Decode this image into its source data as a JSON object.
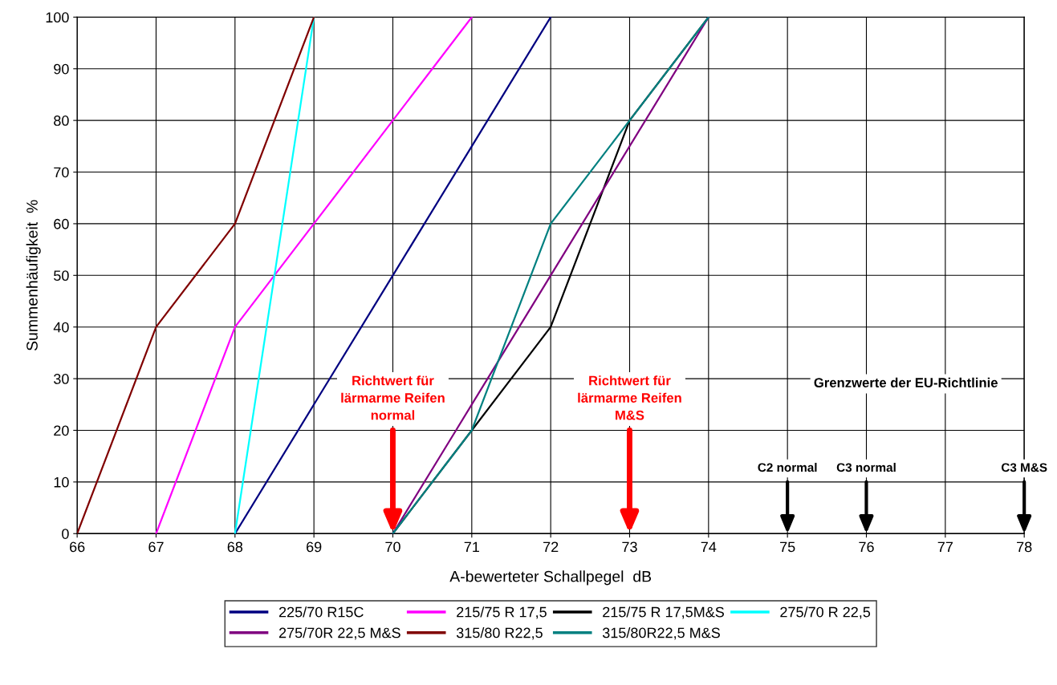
{
  "chart_data": {
    "type": "line",
    "xlabel": "A-bewerteter Schallpegel  dB",
    "ylabel": "Summenhäufigkeit  %",
    "xlim": [
      66,
      78
    ],
    "xticks": [
      66,
      67,
      68,
      69,
      70,
      71,
      72,
      73,
      74,
      75,
      76,
      77,
      78
    ],
    "ylim": [
      0,
      100
    ],
    "yticks": [
      0,
      10,
      20,
      30,
      40,
      50,
      60,
      70,
      80,
      90,
      100
    ],
    "grid": true,
    "legend": "bottom",
    "marker": "none",
    "line_style": "solid",
    "series": [
      {
        "name": "225/70 R15C",
        "color": "#000080",
        "x": [
          68,
          69,
          70,
          71,
          72
        ],
        "values": [
          0,
          25,
          50,
          75,
          100
        ]
      },
      {
        "name": "215/75 R 17,5",
        "color": "#ff00ff",
        "x": [
          67,
          68,
          69,
          70,
          71
        ],
        "values": [
          0,
          40,
          60,
          80,
          100
        ]
      },
      {
        "name": "215/75 R 17,5M&S",
        "color": "#000000",
        "x": [
          70,
          71,
          72,
          73,
          74
        ],
        "values": [
          0,
          20,
          40,
          80,
          100
        ]
      },
      {
        "name": "275/70 R 22,5",
        "color": "#00ffff",
        "x": [
          68,
          69
        ],
        "values": [
          0,
          100
        ]
      },
      {
        "name": "275/70R 22,5 M&S",
        "color": "#800080",
        "x": [
          70,
          70.8,
          72,
          74
        ],
        "values": [
          0,
          20,
          50,
          100
        ]
      },
      {
        "name": "315/80 R22,5",
        "color": "#800000",
        "x": [
          66,
          67,
          68,
          69
        ],
        "values": [
          0,
          40,
          60,
          100
        ]
      },
      {
        "name": "315/80R22,5 M&S",
        "color": "#008080",
        "x": [
          70,
          71,
          72,
          73,
          74
        ],
        "values": [
          0,
          20,
          60,
          80,
          100
        ]
      }
    ],
    "annotations": [
      "Richtwert für\nlärmarme Reifen\nnormal",
      "Richtwert für\nlärmarme Reifen\nM&S",
      "C2 normal",
      "C3 normal",
      "C3 M&S",
      "Grenzwerte der EU-Richtlinie"
    ]
  }
}
